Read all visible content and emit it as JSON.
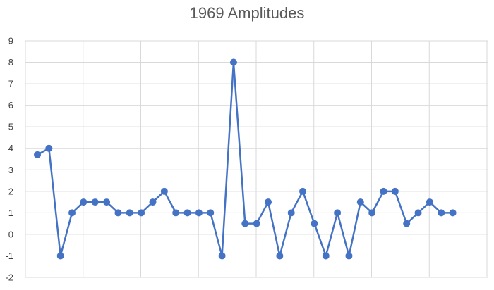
{
  "chart_data": {
    "type": "line",
    "title": "1969 Amplitudes",
    "xlabel": "",
    "ylabel": "",
    "ylim": [
      -2,
      9
    ],
    "yticks": [
      -2,
      -1,
      0,
      1,
      2,
      3,
      4,
      5,
      6,
      7,
      8,
      9
    ],
    "grid": true,
    "legend": "none",
    "colors": {
      "series": "#4472C4",
      "grid": "#D9D9D9",
      "text": "#595959"
    },
    "series": [
      {
        "values": [
          3.7,
          4,
          -1,
          1,
          1.5,
          1.5,
          1.5,
          1,
          1,
          1,
          1.5,
          2,
          1,
          1,
          1,
          1,
          -1,
          8,
          0.5,
          0.5,
          1.5,
          -1,
          1,
          2,
          0.5,
          -1,
          1,
          -1,
          1.5,
          1,
          2,
          2,
          0.5,
          1,
          1.5,
          1,
          1
        ]
      }
    ]
  }
}
